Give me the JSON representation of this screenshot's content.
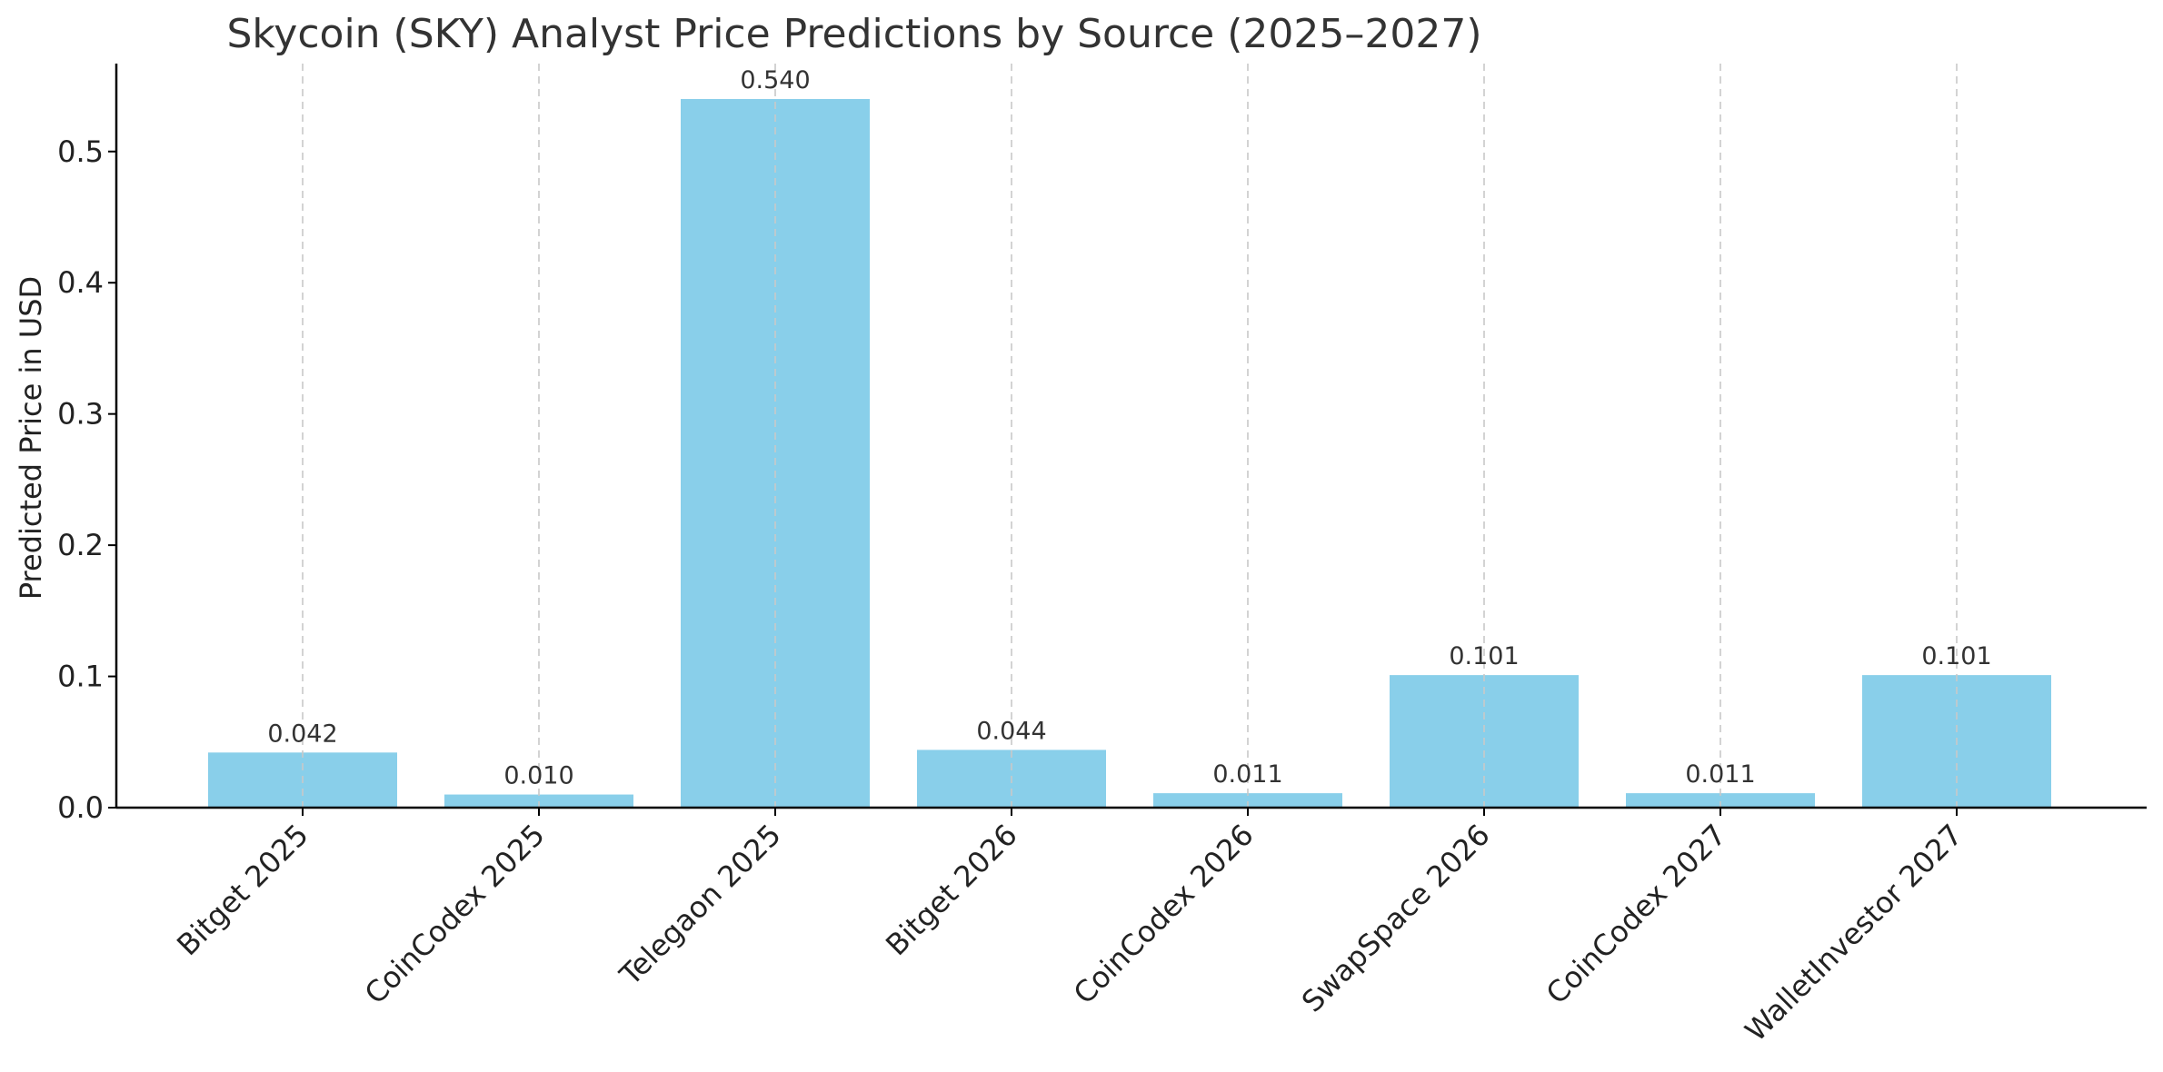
{
  "chart_data": {
    "type": "bar",
    "title": "Skycoin (SKY) Analyst Price Predictions by Source (2025–2027)",
    "xlabel": "",
    "ylabel": "Predicted Price in USD",
    "categories": [
      "Bitget 2025",
      "CoinCodex 2025",
      "Telegaon 2025",
      "Bitget 2026",
      "CoinCodex 2026",
      "SwapSpace 2026",
      "CoinCodex 2027",
      "WalletInvestor 2027"
    ],
    "values": [
      0.042,
      0.01,
      0.54,
      0.044,
      0.011,
      0.101,
      0.011,
      0.101
    ],
    "value_labels": [
      "0.042",
      "0.010",
      "0.540",
      "0.044",
      "0.011",
      "0.101",
      "0.011",
      "0.101"
    ],
    "ylim": [
      0,
      0.567
    ],
    "yticks": [
      0.0,
      0.1,
      0.2,
      0.3,
      0.4,
      0.5
    ],
    "ytick_labels": [
      "0.0",
      "0.1",
      "0.2",
      "0.3",
      "0.4",
      "0.5"
    ],
    "grid": "vertical dashed (x)",
    "bar_color": "#89CFEA",
    "grid_color": "#c8c8c8"
  }
}
